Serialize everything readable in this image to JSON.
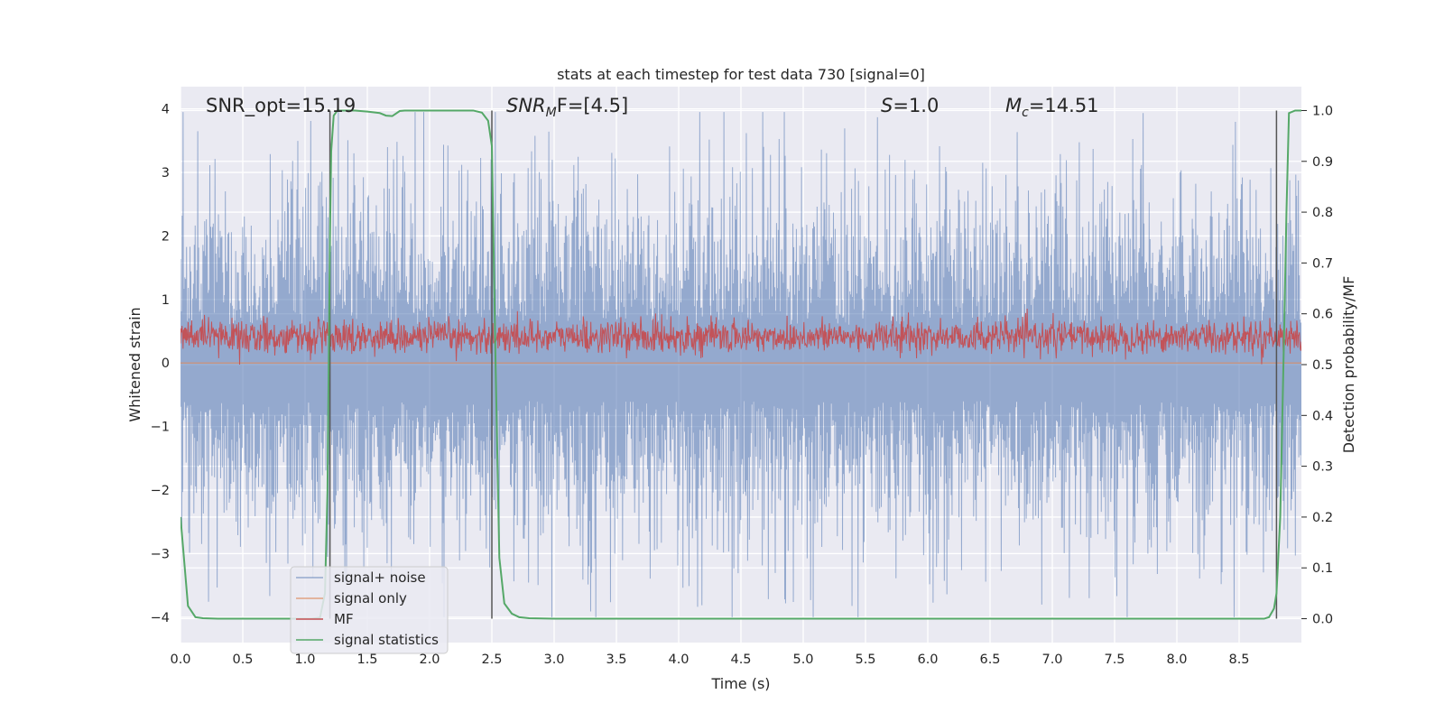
{
  "chart_data": {
    "type": "line",
    "title": "stats at each timestep for test data 730 [signal=0]",
    "xlabel": "Time (s)",
    "ylabel_left": "Whitened strain",
    "ylabel_right": "Detection probability/MF",
    "xlim": [
      0.0,
      9.0
    ],
    "ylim_left": [
      -4.4,
      4.35
    ],
    "ylim_right": [
      -0.047,
      1.047
    ],
    "xticks": [
      "0.0",
      "0.5",
      "1.0",
      "1.5",
      "2.0",
      "2.5",
      "3.0",
      "3.5",
      "4.0",
      "4.5",
      "5.0",
      "5.5",
      "6.0",
      "6.5",
      "7.0",
      "7.5",
      "8.0",
      "8.5"
    ],
    "xtick_values": [
      0.0,
      0.5,
      1.0,
      1.5,
      2.0,
      2.5,
      3.0,
      3.5,
      4.0,
      4.5,
      5.0,
      5.5,
      6.0,
      6.5,
      7.0,
      7.5,
      8.0,
      8.5
    ],
    "yticks_left": [
      "−4",
      "−3",
      "−2",
      "−1",
      "0",
      "1",
      "2",
      "3",
      "4"
    ],
    "ytick_values_left": [
      -4,
      -3,
      -2,
      -1,
      0,
      1,
      2,
      3,
      4
    ],
    "yticks_right": [
      "0.0",
      "0.1",
      "0.2",
      "0.3",
      "0.4",
      "0.5",
      "0.6",
      "0.7",
      "0.8",
      "0.9",
      "1.0"
    ],
    "ytick_values_right": [
      0.0,
      0.1,
      0.2,
      0.3,
      0.4,
      0.5,
      0.6,
      0.7,
      0.8,
      0.9,
      1.0
    ],
    "grid": true,
    "annotations": {
      "snr_opt": "SNR_opt=15.19",
      "snr_mf_base": "SNR",
      "snr_mf_sub": "M",
      "snr_mf_rest": "F=[4.5]",
      "s_base": "S",
      "s_rest": "=1.0",
      "mc_base": "M",
      "mc_sub": "c",
      "mc_rest": "=14.51"
    },
    "vertical_lines_x": [
      1.2,
      2.5,
      8.8
    ],
    "legend": {
      "placement": "lower-left",
      "entries": [
        "signal+ noise",
        "signal only",
        "MF",
        "signal statistics"
      ]
    },
    "colors": {
      "signal_noise": "#4c72b0",
      "signal_only": "#dd8452",
      "mf": "#c44e52",
      "signal_statistics": "#55a868",
      "vlines": "#555555",
      "axes_bg": "#eaeaf2",
      "grid": "#ffffff"
    },
    "series": [
      {
        "name": "signal+ noise",
        "axis": "left",
        "description_stats": {
          "center": 0.0,
          "approx_max": 3.95,
          "approx_min": -4.0
        }
      },
      {
        "name": "signal only",
        "axis": "left",
        "values_constant": 0.0
      },
      {
        "name": "MF",
        "axis": "right",
        "description_stats": {
          "center": 0.555,
          "approx_max": 0.61,
          "approx_min": 0.5
        }
      },
      {
        "name": "signal statistics",
        "axis": "right",
        "x": [
          0.0,
          0.06,
          0.12,
          0.18,
          0.3,
          0.6,
          0.9,
          1.05,
          1.12,
          1.16,
          1.18,
          1.19,
          1.2,
          1.21,
          1.23,
          1.26,
          1.3,
          1.4,
          1.5,
          1.6,
          1.65,
          1.7,
          1.76,
          1.8,
          2.0,
          2.2,
          2.35,
          2.42,
          2.47,
          2.5,
          2.53,
          2.56,
          2.6,
          2.66,
          2.72,
          2.8,
          3.0,
          4.0,
          5.0,
          6.0,
          7.0,
          8.0,
          8.6,
          8.7,
          8.74,
          8.78,
          8.8,
          8.83,
          8.86,
          8.88,
          8.9,
          8.95,
          9.0
        ],
        "values": [
          0.2,
          0.025,
          0.003,
          0.001,
          0.0,
          0.0,
          0.0,
          0.0,
          0.002,
          0.05,
          0.25,
          0.5,
          0.75,
          0.92,
          0.99,
          1.0,
          1.0,
          1.0,
          0.998,
          0.995,
          0.99,
          0.989,
          0.999,
          1.0,
          1.0,
          1.0,
          1.0,
          0.996,
          0.98,
          0.93,
          0.5,
          0.12,
          0.03,
          0.01,
          0.003,
          0.001,
          0.0,
          0.0,
          0.0,
          0.0,
          0.0,
          0.0,
          0.0,
          0.0,
          0.003,
          0.02,
          0.05,
          0.2,
          0.55,
          0.8,
          0.995,
          1.0,
          1.0
        ]
      }
    ]
  }
}
